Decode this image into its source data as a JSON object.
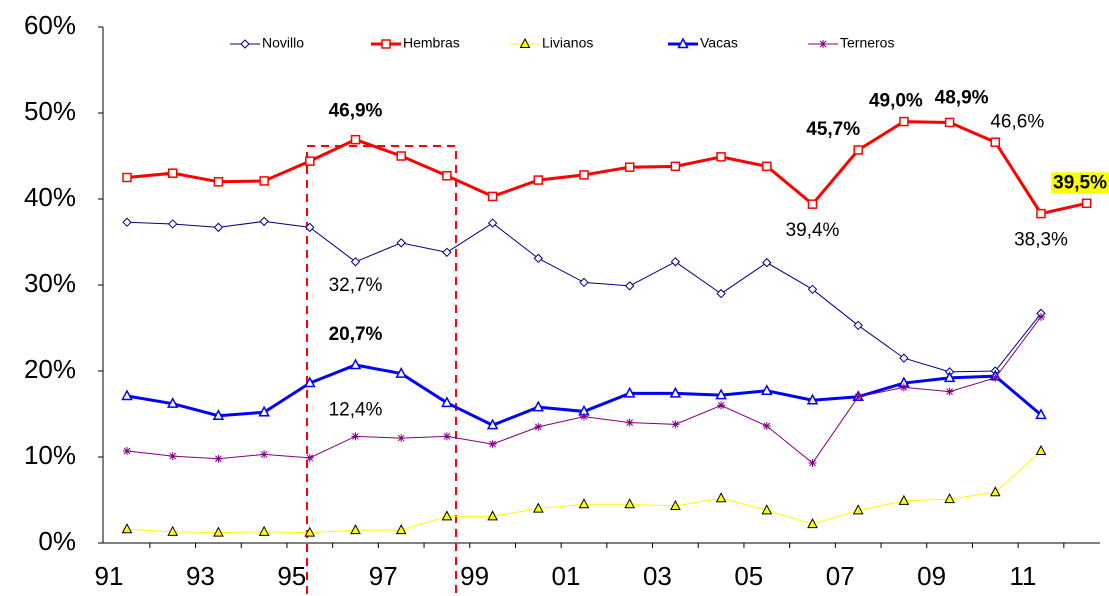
{
  "chart_data": {
    "type": "line",
    "categories": [
      "91",
      null,
      "93",
      null,
      "95",
      null,
      "97",
      null,
      "99",
      null,
      "01",
      null,
      "03",
      null,
      "05",
      null,
      "07",
      null,
      "09",
      null,
      "11",
      null
    ],
    "ylim": [
      0,
      60
    ],
    "yticks": [
      {
        "value": 0,
        "label": "0%"
      },
      {
        "value": 10,
        "label": "10%"
      },
      {
        "value": 20,
        "label": "20%"
      },
      {
        "value": 30,
        "label": "30%"
      },
      {
        "value": 40,
        "label": "40%"
      },
      {
        "value": 50,
        "label": "50%"
      },
      {
        "value": 60,
        "label": "60%"
      }
    ],
    "legend": "top",
    "series": [
      {
        "name": "Novillo",
        "color": "#000080",
        "marker": "diamond",
        "width": 1,
        "values": [
          37.3,
          37.1,
          36.7,
          37.4,
          36.7,
          32.7,
          34.9,
          33.8,
          37.2,
          33.1,
          30.3,
          29.9,
          32.7,
          29.0,
          32.6,
          29.5,
          25.3,
          21.5,
          19.9,
          20.0,
          26.7,
          null
        ],
        "value_labels": [
          null,
          null,
          null,
          null,
          null,
          "32,7%",
          null,
          null,
          null,
          null,
          null,
          null,
          null,
          null,
          null,
          null,
          null,
          null,
          null,
          null,
          null,
          null
        ],
        "bold_labels": []
      },
      {
        "name": "Hembras",
        "color": "#ff0000",
        "marker": "square",
        "width": 3,
        "values": [
          42.5,
          43.0,
          42.0,
          42.1,
          44.4,
          46.9,
          45.0,
          42.7,
          40.3,
          42.2,
          42.8,
          43.7,
          43.8,
          44.9,
          43.8,
          39.4,
          45.7,
          49.0,
          48.9,
          46.6,
          38.3,
          39.5
        ],
        "value_labels": [
          null,
          null,
          null,
          null,
          null,
          "46,9%",
          null,
          null,
          null,
          null,
          null,
          null,
          null,
          null,
          null,
          "39,4%",
          "45,7%",
          "49,0%",
          "48,9%",
          "46,6%",
          "38,3%",
          "39,5%"
        ],
        "bold_labels": [
          5,
          16,
          17,
          18,
          21
        ],
        "highlight_label": 21,
        "highlight_color": "#ffff00"
      },
      {
        "name": "Livianos",
        "color": "#ffff00",
        "marker": "triangle-filled",
        "width": 1,
        "values": [
          1.6,
          1.3,
          1.2,
          1.3,
          1.2,
          1.5,
          1.5,
          3.1,
          3.1,
          4.0,
          4.5,
          4.5,
          4.3,
          5.2,
          3.8,
          2.2,
          3.8,
          4.9,
          5.1,
          5.9,
          10.7,
          null
        ]
      },
      {
        "name": "Vacas",
        "color": "#0000ff",
        "marker": "triangle",
        "width": 3,
        "values": [
          17.1,
          16.2,
          14.8,
          15.2,
          18.6,
          20.7,
          19.7,
          16.3,
          13.7,
          15.8,
          15.3,
          17.4,
          17.4,
          17.2,
          17.7,
          16.6,
          17.0,
          18.6,
          19.2,
          19.4,
          14.9,
          null
        ],
        "value_labels": [
          null,
          null,
          null,
          null,
          null,
          "20,7%",
          null,
          null,
          null,
          null,
          null,
          null,
          null,
          null,
          null,
          null,
          null,
          null,
          null,
          null,
          null,
          null
        ],
        "bold_labels": [
          5
        ]
      },
      {
        "name": "Terneros",
        "color": "#800080",
        "marker": "asterisk",
        "width": 1,
        "values": [
          10.7,
          10.1,
          9.8,
          10.3,
          9.9,
          12.4,
          12.2,
          12.4,
          11.5,
          13.5,
          14.7,
          14.0,
          13.8,
          16.0,
          13.6,
          9.3,
          17.0,
          18.1,
          17.6,
          19.2,
          26.3,
          null
        ],
        "value_labels": [
          null,
          null,
          null,
          null,
          null,
          "12,4%",
          null,
          null,
          null,
          null,
          null,
          null,
          null,
          null,
          null,
          null,
          null,
          null,
          null,
          null,
          null,
          null
        ],
        "bold_labels": []
      }
    ]
  }
}
